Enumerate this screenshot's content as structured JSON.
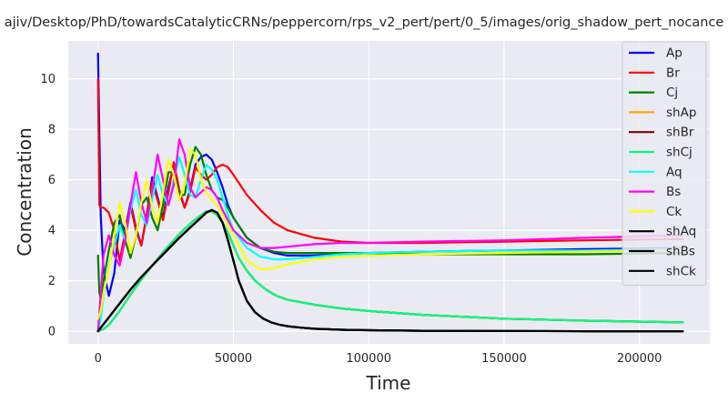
{
  "chart_data": {
    "type": "line",
    "title": "ajiv/Desktop/PhD/towardsCatalyticCRNs/peppercorn/rps_v2_pert/pert/0_5/images/orig_shadow_pert_nocance",
    "xlabel": "Time",
    "ylabel": "Concentration",
    "xlim": [
      -11000,
      226000
    ],
    "ylim": [
      -0.5,
      11.5
    ],
    "xticks": [
      0,
      50000,
      100000,
      150000,
      200000
    ],
    "xtick_labels": [
      "0",
      "50000",
      "100000",
      "150000",
      "200000"
    ],
    "yticks": [
      0,
      2,
      4,
      6,
      8,
      10
    ],
    "ytick_labels": [
      "0",
      "2",
      "4",
      "6",
      "8",
      "10"
    ],
    "grid": true,
    "legend_position": "right",
    "series": [
      {
        "name": "Ap",
        "color": "#0000ff",
        "x": [
          0,
          1000,
          2000,
          4000,
          6000,
          8000,
          10000,
          12000,
          14000,
          16000,
          18000,
          20000,
          22000,
          24000,
          26000,
          28000,
          30000,
          32000,
          34000,
          36000,
          38000,
          40000,
          42000,
          44000,
          46000,
          48000,
          50000,
          55000,
          60000,
          65000,
          70000,
          80000,
          90000,
          100000,
          120000,
          150000,
          180000,
          216000
        ],
        "y": [
          11.0,
          4.6,
          2.4,
          1.4,
          2.3,
          4.4,
          4.0,
          5.1,
          4.1,
          3.4,
          4.6,
          6.1,
          5.3,
          4.5,
          5.7,
          6.6,
          5.5,
          4.9,
          5.6,
          6.6,
          6.9,
          7.0,
          6.8,
          6.3,
          5.7,
          5.0,
          4.5,
          3.7,
          3.3,
          3.1,
          3.0,
          3.0,
          3.05,
          3.1,
          3.15,
          3.2,
          3.25,
          3.3
        ]
      },
      {
        "name": "Br",
        "color": "#ff0000",
        "x": [
          0,
          500,
          1000,
          2000,
          4000,
          6000,
          8000,
          10000,
          12000,
          14000,
          16000,
          18000,
          20000,
          22000,
          24000,
          26000,
          28000,
          30000,
          32000,
          34000,
          36000,
          38000,
          40000,
          42000,
          44000,
          46000,
          48000,
          50000,
          55000,
          60000,
          65000,
          70000,
          80000,
          90000,
          100000,
          120000,
          150000,
          180000,
          216000
        ],
        "y": [
          10.0,
          5.0,
          4.9,
          4.9,
          4.7,
          4.0,
          2.8,
          3.9,
          5.0,
          4.0,
          3.4,
          4.6,
          5.9,
          5.2,
          4.4,
          5.5,
          6.7,
          5.6,
          4.9,
          5.5,
          6.5,
          6.2,
          6.0,
          6.2,
          6.5,
          6.6,
          6.5,
          6.2,
          5.4,
          4.8,
          4.3,
          4.0,
          3.7,
          3.55,
          3.5,
          3.5,
          3.55,
          3.6,
          3.65
        ]
      },
      {
        "name": "Cj",
        "color": "#008000",
        "x": [
          0,
          500,
          1000,
          2000,
          4000,
          6000,
          8000,
          10000,
          12000,
          14000,
          16000,
          18000,
          20000,
          22000,
          24000,
          26000,
          28000,
          30000,
          32000,
          34000,
          36000,
          38000,
          40000,
          42000,
          44000,
          46000,
          48000,
          50000,
          55000,
          60000,
          65000,
          70000,
          80000,
          90000,
          100000,
          120000,
          150000,
          180000,
          216000
        ],
        "y": [
          3.0,
          1.5,
          1.3,
          2.0,
          3.2,
          4.3,
          4.6,
          3.6,
          2.9,
          3.8,
          5.0,
          5.3,
          4.5,
          4.0,
          5.0,
          6.3,
          6.3,
          5.4,
          5.4,
          6.6,
          7.3,
          7.0,
          6.2,
          5.6,
          5.3,
          5.2,
          4.9,
          4.5,
          3.7,
          3.3,
          3.15,
          3.1,
          3.1,
          3.1,
          3.1,
          3.05,
          3.05,
          3.05,
          3.1
        ]
      },
      {
        "name": "shAp",
        "color": "#ffa500",
        "x": [
          0,
          2000,
          4000,
          8000,
          12000,
          16000,
          20000,
          25000,
          30000,
          35000,
          40000,
          42000,
          44000,
          46000,
          48000,
          50000,
          52000,
          55000,
          58000,
          62000,
          66000,
          70000,
          80000,
          90000,
          100000,
          120000,
          150000,
          180000,
          216000
        ],
        "y": [
          0.0,
          0.08,
          0.25,
          0.8,
          1.45,
          2.05,
          2.6,
          3.25,
          3.85,
          4.35,
          4.75,
          4.75,
          4.6,
          4.3,
          3.9,
          3.4,
          2.9,
          2.4,
          2.0,
          1.65,
          1.4,
          1.25,
          1.05,
          0.9,
          0.8,
          0.65,
          0.5,
          0.42,
          0.35
        ]
      },
      {
        "name": "shBr",
        "color": "#800000",
        "x": [
          0,
          2000,
          4000,
          8000,
          12000,
          16000,
          20000,
          25000,
          30000,
          35000,
          40000,
          42000,
          44000,
          46000,
          48000,
          50000,
          52000,
          55000,
          58000,
          62000,
          66000,
          70000,
          80000,
          90000,
          100000,
          120000,
          150000,
          180000,
          216000
        ],
        "y": [
          0.0,
          0.08,
          0.25,
          0.8,
          1.45,
          2.05,
          2.6,
          3.25,
          3.85,
          4.35,
          4.75,
          4.75,
          4.6,
          4.3,
          3.9,
          3.4,
          2.9,
          2.4,
          2.0,
          1.65,
          1.4,
          1.25,
          1.05,
          0.9,
          0.8,
          0.65,
          0.5,
          0.42,
          0.35
        ]
      },
      {
        "name": "shCj",
        "color": "#00ff7f",
        "x": [
          0,
          2000,
          4000,
          8000,
          12000,
          16000,
          20000,
          25000,
          30000,
          35000,
          40000,
          42000,
          44000,
          46000,
          48000,
          50000,
          52000,
          55000,
          58000,
          62000,
          66000,
          70000,
          80000,
          90000,
          100000,
          120000,
          150000,
          180000,
          216000
        ],
        "y": [
          0.0,
          0.08,
          0.25,
          0.8,
          1.45,
          2.05,
          2.6,
          3.25,
          3.85,
          4.35,
          4.75,
          4.75,
          4.6,
          4.3,
          3.9,
          3.4,
          2.9,
          2.4,
          2.0,
          1.65,
          1.4,
          1.25,
          1.05,
          0.9,
          0.8,
          0.65,
          0.5,
          0.42,
          0.35
        ]
      },
      {
        "name": "Aq",
        "color": "#00ffff",
        "x": [
          0,
          1000,
          2000,
          4000,
          6000,
          8000,
          10000,
          12000,
          14000,
          16000,
          18000,
          20000,
          22000,
          24000,
          26000,
          28000,
          30000,
          32000,
          34000,
          36000,
          38000,
          40000,
          42000,
          44000,
          46000,
          48000,
          50000,
          55000,
          60000,
          65000,
          70000,
          80000,
          90000,
          100000,
          120000,
          150000,
          180000,
          216000
        ],
        "y": [
          0.0,
          0.5,
          1.4,
          2.6,
          3.4,
          4.2,
          3.6,
          4.8,
          5.6,
          4.6,
          4.2,
          5.2,
          6.2,
          5.4,
          5.0,
          6.0,
          6.9,
          6.2,
          5.4,
          5.3,
          6.0,
          6.6,
          6.4,
          6.0,
          5.3,
          4.6,
          4.0,
          3.3,
          2.95,
          2.85,
          2.85,
          2.95,
          3.05,
          3.1,
          3.15,
          3.2,
          3.2,
          3.25
        ]
      },
      {
        "name": "Bs",
        "color": "#ff00ff",
        "x": [
          0,
          1000,
          2000,
          4000,
          6000,
          8000,
          10000,
          12000,
          14000,
          16000,
          18000,
          20000,
          22000,
          24000,
          26000,
          28000,
          30000,
          32000,
          34000,
          36000,
          38000,
          40000,
          42000,
          44000,
          46000,
          48000,
          50000,
          55000,
          60000,
          65000,
          70000,
          80000,
          90000,
          100000,
          120000,
          150000,
          180000,
          216000
        ],
        "y": [
          0.0,
          1.5,
          3.0,
          3.8,
          3.0,
          2.6,
          3.6,
          5.0,
          6.3,
          5.1,
          4.3,
          5.6,
          7.0,
          6.0,
          5.0,
          5.8,
          7.6,
          7.0,
          5.7,
          5.3,
          5.5,
          5.7,
          5.6,
          5.3,
          4.8,
          4.4,
          4.0,
          3.5,
          3.3,
          3.3,
          3.35,
          3.45,
          3.5,
          3.5,
          3.55,
          3.6,
          3.7,
          3.8
        ]
      },
      {
        "name": "Ck",
        "color": "#ffff00",
        "x": [
          0,
          1000,
          2000,
          4000,
          6000,
          8000,
          10000,
          12000,
          14000,
          16000,
          18000,
          20000,
          22000,
          24000,
          26000,
          28000,
          30000,
          32000,
          34000,
          36000,
          38000,
          40000,
          42000,
          44000,
          46000,
          48000,
          50000,
          55000,
          60000,
          65000,
          70000,
          80000,
          90000,
          100000,
          120000,
          150000,
          180000,
          216000
        ],
        "y": [
          0.5,
          0.8,
          1.5,
          2.5,
          3.8,
          5.1,
          4.3,
          3.1,
          3.8,
          5.1,
          6.0,
          4.9,
          4.3,
          5.5,
          6.8,
          6.2,
          5.2,
          5.8,
          7.2,
          7.0,
          6.0,
          5.5,
          5.2,
          5.0,
          4.6,
          4.2,
          3.8,
          2.8,
          2.45,
          2.5,
          2.65,
          2.85,
          2.95,
          3.0,
          3.05,
          3.1,
          3.15,
          3.2
        ]
      },
      {
        "name": "shAq",
        "color": "#000000",
        "x": [
          0,
          4000,
          8000,
          12000,
          16000,
          20000,
          25000,
          30000,
          35000,
          38000,
          40000,
          42000,
          44000,
          46000,
          48000,
          50000,
          52000,
          55000,
          58000,
          61000,
          64000,
          67000,
          70000,
          75000,
          80000,
          90000,
          100000,
          120000,
          150000,
          180000,
          216000
        ],
        "y": [
          0.0,
          0.55,
          1.1,
          1.65,
          2.15,
          2.6,
          3.15,
          3.7,
          4.2,
          4.5,
          4.7,
          4.8,
          4.7,
          4.3,
          3.6,
          2.8,
          2.0,
          1.2,
          0.75,
          0.5,
          0.35,
          0.26,
          0.2,
          0.14,
          0.1,
          0.06,
          0.04,
          0.02,
          0.01,
          0.0,
          0.0
        ]
      },
      {
        "name": "shBs",
        "color": "#000000",
        "x": [
          0,
          4000,
          8000,
          12000,
          16000,
          20000,
          25000,
          30000,
          35000,
          38000,
          40000,
          42000,
          44000,
          46000,
          48000,
          50000,
          52000,
          55000,
          58000,
          61000,
          64000,
          67000,
          70000,
          75000,
          80000,
          90000,
          100000,
          120000,
          150000,
          180000,
          216000
        ],
        "y": [
          0.0,
          0.55,
          1.1,
          1.65,
          2.15,
          2.6,
          3.15,
          3.7,
          4.2,
          4.5,
          4.7,
          4.8,
          4.7,
          4.3,
          3.6,
          2.8,
          2.0,
          1.2,
          0.75,
          0.5,
          0.35,
          0.26,
          0.2,
          0.14,
          0.1,
          0.06,
          0.04,
          0.02,
          0.01,
          0.0,
          0.0
        ]
      },
      {
        "name": "shCk",
        "color": "#000000",
        "x": [
          0,
          4000,
          8000,
          12000,
          16000,
          20000,
          25000,
          30000,
          35000,
          38000,
          40000,
          42000,
          44000,
          46000,
          48000,
          50000,
          52000,
          55000,
          58000,
          61000,
          64000,
          67000,
          70000,
          75000,
          80000,
          90000,
          100000,
          120000,
          150000,
          180000,
          216000
        ],
        "y": [
          0.0,
          0.55,
          1.1,
          1.65,
          2.15,
          2.6,
          3.15,
          3.7,
          4.2,
          4.5,
          4.7,
          4.8,
          4.7,
          4.3,
          3.6,
          2.8,
          2.0,
          1.2,
          0.75,
          0.5,
          0.35,
          0.26,
          0.2,
          0.14,
          0.1,
          0.06,
          0.04,
          0.02,
          0.01,
          0.0,
          0.0
        ]
      }
    ]
  }
}
